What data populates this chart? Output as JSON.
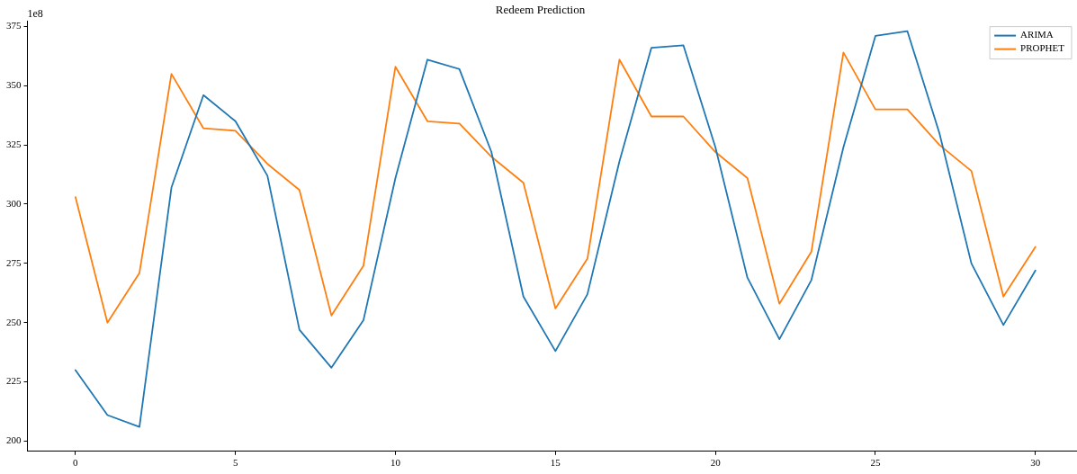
{
  "chart_data": {
    "type": "line",
    "title": "Redeem Prediction",
    "annotations": [
      "1e8"
    ],
    "x": [
      0,
      1,
      2,
      3,
      4,
      5,
      6,
      7,
      8,
      9,
      10,
      11,
      12,
      13,
      14,
      15,
      16,
      17,
      18,
      19,
      20,
      21,
      22,
      23,
      24,
      25,
      26,
      27,
      28,
      29,
      30
    ],
    "series": [
      {
        "name": "ARIMA",
        "color": "#1f77b4",
        "values": [
          230,
          211,
          206,
          307,
          346,
          335,
          312,
          247,
          231,
          251,
          311,
          361,
          357,
          322,
          261,
          238,
          262,
          318,
          366,
          367,
          324,
          269,
          243,
          268,
          324,
          371,
          373,
          330,
          275,
          249,
          272
        ]
      },
      {
        "name": "PROPHET",
        "color": "#ff7f0e",
        "values": [
          303,
          250,
          271,
          355,
          332,
          331,
          317,
          306,
          253,
          274,
          358,
          335,
          334,
          320,
          309,
          256,
          277,
          361,
          337,
          337,
          322,
          311,
          258,
          280,
          364,
          340,
          340,
          325,
          314,
          261,
          282
        ]
      }
    ],
    "xlim": [
      -1.5,
      31.3
    ],
    "xticks": [
      0,
      5,
      10,
      15,
      20,
      25,
      30
    ],
    "ylim": [
      195.7,
      377.2
    ],
    "yticks": [
      200,
      225,
      250,
      275,
      300,
      325,
      350,
      375
    ],
    "grid": false,
    "legend": "top right",
    "marker": "none",
    "line_style": "solid"
  }
}
